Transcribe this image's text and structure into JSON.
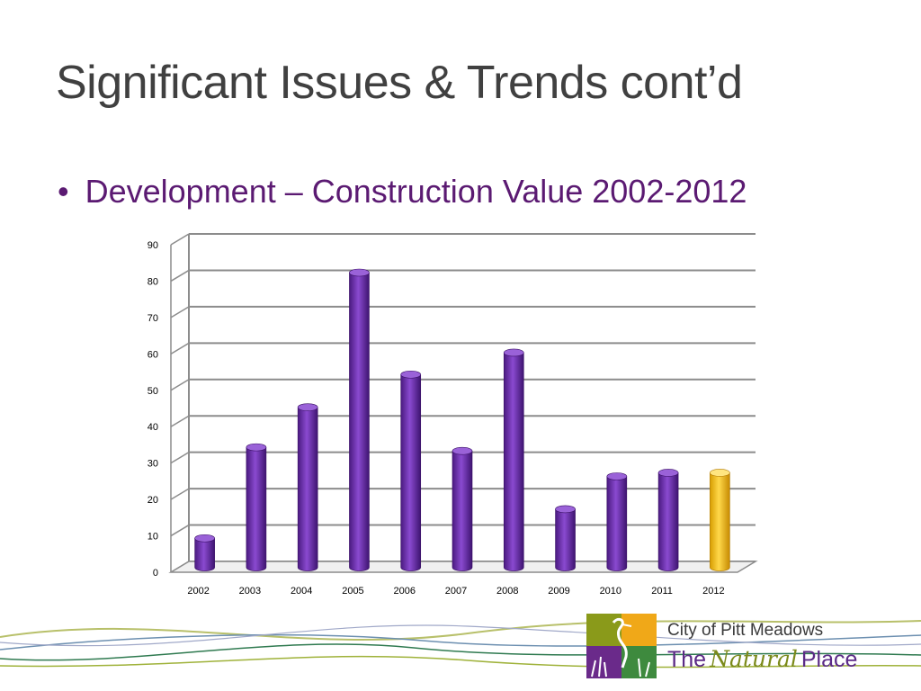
{
  "slide": {
    "title": "Significant Issues & Trends cont’d",
    "bullet": "Development – Construction Value 2002-2012"
  },
  "logo": {
    "city": "City of Pitt Meadows",
    "tag_the": "The",
    "tag_natural": "Natural",
    "tag_place": "Place"
  },
  "colors": {
    "bar": "#6a2aa8",
    "bar_highlight": "#f5c000",
    "title_text": "#404040",
    "bullet_text": "#5b1a72",
    "gridline": "#8c8c8c"
  },
  "chart_data": {
    "type": "bar",
    "style": "3d-cylinder",
    "categories": [
      "2002",
      "2003",
      "2004",
      "2005",
      "2006",
      "2007",
      "2008",
      "2009",
      "2010",
      "2011",
      "2012"
    ],
    "values": [
      8,
      33,
      44,
      81,
      53,
      32,
      59,
      16,
      25,
      26,
      26
    ],
    "highlight_category": "2012",
    "title": "",
    "xlabel": "",
    "ylabel": "",
    "ylim": [
      0,
      90
    ],
    "yticks": [
      0,
      10,
      20,
      30,
      40,
      50,
      60,
      70,
      80,
      90
    ],
    "grid": true,
    "legend": "none"
  }
}
